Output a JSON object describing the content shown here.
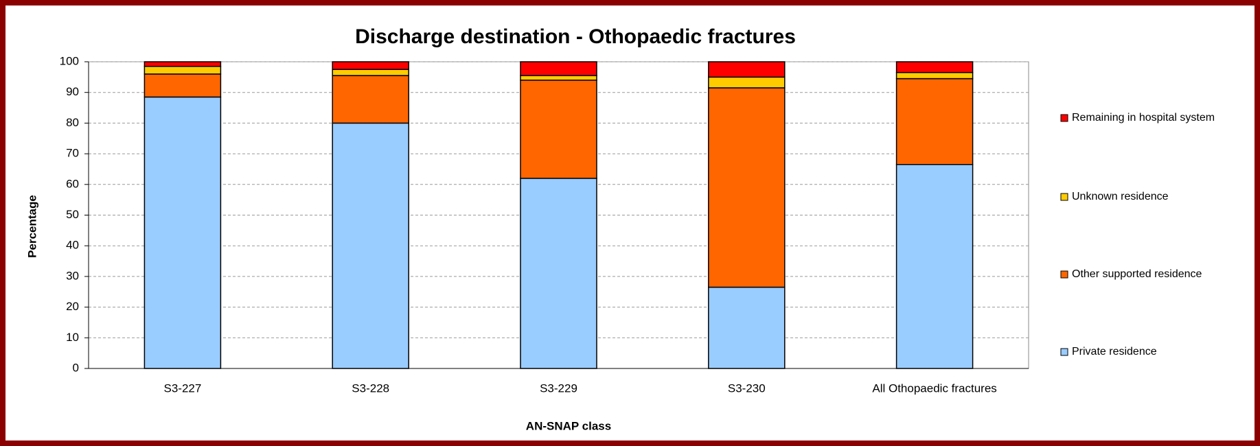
{
  "chart_data": {
    "type": "stacked_bar",
    "title": "Discharge destination - Othopaedic fractures",
    "x_label": "AN-SNAP class",
    "y_label": "Percentage",
    "categories": [
      "S3-227",
      "S3-228",
      "S3-229",
      "S3-230",
      "All Othopaedic fractures"
    ],
    "series": [
      {
        "name": "Private residence",
        "color": "#99ccff",
        "values": [
          88.5,
          80,
          62,
          26.5,
          66.5
        ]
      },
      {
        "name": "Other supported residence",
        "color": "#ff6600",
        "values": [
          7.5,
          15.5,
          32,
          65,
          28
        ]
      },
      {
        "name": "Unknown residence",
        "color": "#ffcc00",
        "values": [
          2.5,
          2,
          1.5,
          3.5,
          2
        ]
      },
      {
        "name": "Remaining in hospital system",
        "color": "#ff0000",
        "values": [
          1.5,
          2.5,
          4.5,
          5,
          3.5
        ]
      }
    ],
    "ylim": [
      0,
      100
    ],
    "yticks": [
      0,
      10,
      20,
      30,
      40,
      50,
      60,
      70,
      80,
      90,
      100
    ],
    "grid": true,
    "legend": "right"
  }
}
